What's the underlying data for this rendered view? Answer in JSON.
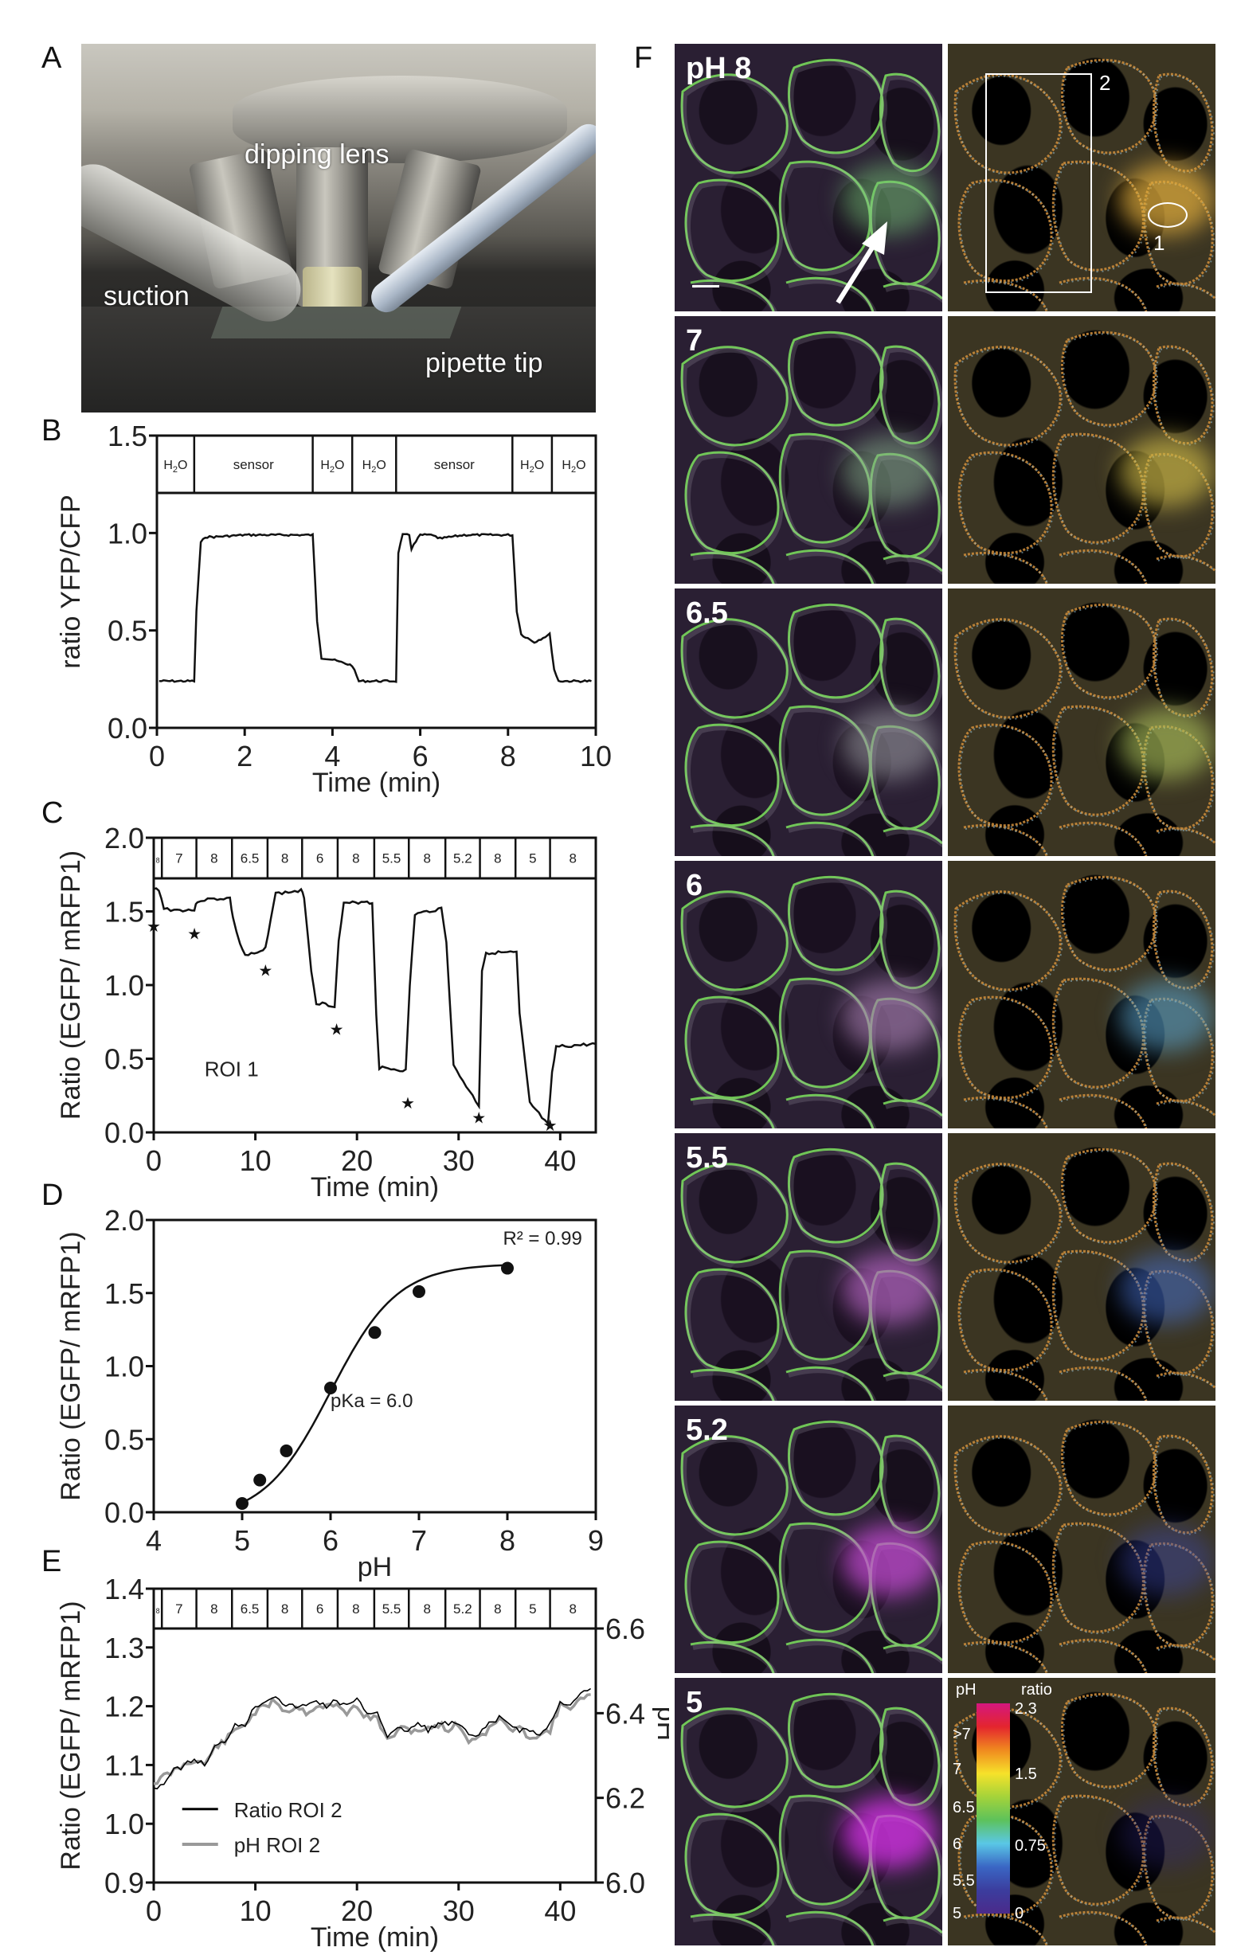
{
  "figure": {
    "panel_letters": {
      "A": "A",
      "B": "B",
      "C": "C",
      "D": "D",
      "E": "E",
      "F": "F"
    }
  },
  "panel_a": {
    "labels": {
      "dipping_lens": "dipping lens",
      "suction": "suction",
      "pipette_tip": "pipette tip"
    }
  },
  "panel_f": {
    "row_labels": [
      "pH 8",
      "7",
      "6.5",
      "6",
      "5.5",
      "5.2",
      "5"
    ],
    "roi_labels": {
      "roi1": "1",
      "roi2": "2"
    },
    "colorbar": {
      "ph_title": "pH",
      "ratio_title": "ratio",
      "ph_ticks": [
        ">7",
        "7",
        "6.5",
        "6",
        "5.5",
        "5"
      ],
      "ratio_ticks": [
        "2.3",
        "1.5",
        "0.75",
        "0"
      ],
      "colors": [
        "#d4177e",
        "#e4252e",
        "#f08a1f",
        "#f6e22a",
        "#a4d33a",
        "#5dc25b",
        "#5ac7e6",
        "#3a66c4",
        "#3b3d9e",
        "#4b2a8a"
      ]
    },
    "channel_colors": {
      "egfp_membrane": "#7be05a",
      "mrfp1": "#8a3aa0",
      "background": "#0b0710"
    }
  },
  "chart_data": [
    {
      "id": "B",
      "type": "line",
      "title": "",
      "xlabel": "Time (min)",
      "ylabel": "ratio YFP/CFP",
      "xlim": [
        0,
        10
      ],
      "ylim": [
        0,
        1.5
      ],
      "xticks": [
        "0",
        "2",
        "4",
        "6",
        "8",
        "10"
      ],
      "yticks": [
        "0.0",
        "0.5",
        "1.0",
        "1.5"
      ],
      "grid": false,
      "condition_bar": [
        {
          "label": "H2O",
          "start": 0,
          "end": 0.85
        },
        {
          "label": "sensor",
          "start": 0.85,
          "end": 3.55
        },
        {
          "label": "H2O",
          "start": 3.55,
          "end": 4.45
        },
        {
          "label": "H2O",
          "start": 4.45,
          "end": 5.45
        },
        {
          "label": "sensor",
          "start": 5.45,
          "end": 8.1
        },
        {
          "label": "H2O",
          "start": 8.1,
          "end": 9.0
        },
        {
          "label": "H2O",
          "start": 9.0,
          "end": 10
        }
      ],
      "x": [
        0.05,
        0.85,
        0.9,
        1.0,
        1.1,
        1.3,
        2.0,
        3.0,
        3.55,
        3.65,
        3.75,
        4.0,
        4.3,
        4.45,
        4.6,
        5.0,
        5.45,
        5.5,
        5.6,
        5.75,
        5.8,
        6.0,
        6.3,
        6.4,
        7.0,
        8.1,
        8.2,
        8.3,
        8.6,
        8.95,
        9.05,
        9.15,
        9.5,
        9.9
      ],
      "values": [
        0.24,
        0.24,
        0.6,
        0.95,
        0.98,
        0.98,
        0.99,
        0.99,
        0.99,
        0.55,
        0.36,
        0.35,
        0.33,
        0.32,
        0.24,
        0.24,
        0.24,
        0.9,
        0.99,
        0.99,
        0.92,
        0.99,
        0.99,
        0.97,
        0.99,
        0.99,
        0.6,
        0.48,
        0.44,
        0.48,
        0.3,
        0.24,
        0.24,
        0.24
      ],
      "series": [
        {
          "name": "ratio YFP/CFP"
        }
      ]
    },
    {
      "id": "C",
      "type": "line",
      "title": "",
      "xlabel": "Time (min)",
      "ylabel": "Ratio (EGFP/ mRFP1)",
      "xlim": [
        0,
        43.5
      ],
      "ylim": [
        0,
        2.0
      ],
      "xticks": [
        "0",
        "10",
        "20",
        "30",
        "40"
      ],
      "yticks": [
        "0.0",
        "0.5",
        "1.0",
        "1.5",
        "2.0"
      ],
      "annotation": "ROI 1",
      "condition_bar": [
        {
          "label": "8",
          "start": 0,
          "end": 0.8
        },
        {
          "label": "7",
          "start": 0.8,
          "end": 4.2
        },
        {
          "label": "8",
          "start": 4.2,
          "end": 7.7
        },
        {
          "label": "6.5",
          "start": 7.7,
          "end": 11.2
        },
        {
          "label": "8",
          "start": 11.2,
          "end": 14.6
        },
        {
          "label": "6",
          "start": 14.6,
          "end": 18.1
        },
        {
          "label": "8",
          "start": 18.1,
          "end": 21.7
        },
        {
          "label": "5.5",
          "start": 21.7,
          "end": 25.1
        },
        {
          "label": "8",
          "start": 25.1,
          "end": 28.7
        },
        {
          "label": "5.2",
          "start": 28.7,
          "end": 32.1
        },
        {
          "label": "8",
          "start": 32.1,
          "end": 35.6
        },
        {
          "label": "5",
          "start": 35.6,
          "end": 39.0
        },
        {
          "label": "8",
          "start": 39.0,
          "end": 43.5
        }
      ],
      "x": [
        0,
        0.5,
        1.0,
        2.0,
        4.0,
        4.3,
        5.0,
        7.5,
        7.8,
        8.5,
        9.0,
        10.5,
        11.0,
        11.5,
        12.0,
        14.5,
        14.8,
        15.5,
        16.0,
        17.8,
        18.2,
        18.7,
        21.0,
        21.5,
        21.9,
        22.2,
        24.8,
        25.2,
        25.7,
        28.3,
        28.8,
        29.5,
        32.0,
        32.3,
        32.7,
        35.7,
        36.0,
        37.0,
        38.8,
        39.2,
        39.6,
        43.5
      ],
      "values": [
        1.65,
        1.65,
        1.52,
        1.51,
        1.51,
        1.57,
        1.58,
        1.59,
        1.45,
        1.28,
        1.2,
        1.22,
        1.25,
        1.45,
        1.62,
        1.64,
        1.6,
        1.1,
        0.88,
        0.86,
        1.3,
        1.55,
        1.57,
        1.55,
        0.8,
        0.44,
        0.42,
        1.0,
        1.48,
        1.52,
        1.3,
        0.45,
        0.18,
        1.1,
        1.22,
        1.22,
        0.8,
        0.2,
        0.05,
        0.4,
        0.58,
        0.6
      ],
      "markers": {
        "symbol": "star",
        "points": [
          [
            0,
            1.4
          ],
          [
            4,
            1.35
          ],
          [
            11,
            1.1
          ],
          [
            18,
            0.7
          ],
          [
            25,
            0.2
          ],
          [
            32,
            0.1
          ],
          [
            39,
            0.05
          ]
        ]
      },
      "series": [
        {
          "name": "ROI 1"
        }
      ]
    },
    {
      "id": "D",
      "type": "scatter",
      "title": "",
      "xlabel": "pH",
      "ylabel": "Ratio (EGFP/ mRFP1)",
      "xlim": [
        4,
        9
      ],
      "ylim": [
        0,
        2.0
      ],
      "xticks": [
        "4",
        "5",
        "6",
        "7",
        "8",
        "9"
      ],
      "yticks": [
        "0.0",
        "0.5",
        "1.0",
        "1.5",
        "2.0"
      ],
      "x": [
        5.0,
        5.2,
        5.5,
        6.0,
        6.5,
        7.0,
        8.0
      ],
      "values": [
        0.06,
        0.22,
        0.42,
        0.85,
        1.23,
        1.51,
        1.67
      ],
      "fit": {
        "type": "sigmoidal",
        "pKa": 6.0,
        "bottom": -0.05,
        "top": 1.7,
        "x_range": [
          5.0,
          8.0
        ]
      },
      "annotations": {
        "r2": "R² = 0.99",
        "pka": "pKa = 6.0"
      },
      "series": [
        {
          "name": "calibration"
        }
      ]
    },
    {
      "id": "E",
      "type": "line",
      "title": "",
      "xlabel": "Time (min)",
      "ylabel": "Ratio (EGFP/ mRFP1)",
      "ylabel_right": "pH",
      "xlim": [
        0,
        43.5
      ],
      "ylim": [
        0.9,
        1.4
      ],
      "ylim_right": [
        6.0,
        6.6
      ],
      "xticks": [
        "0",
        "10",
        "20",
        "30",
        "40"
      ],
      "yticks": [
        "0.9",
        "1.0",
        "1.1",
        "1.2",
        "1.3",
        "1.4"
      ],
      "yticks_right": [
        "6.0",
        "6.2",
        "6.4",
        "6.6"
      ],
      "legend": [
        "Ratio ROI 2",
        "pH ROI 2"
      ],
      "legend_position": "lower left",
      "condition_bar": [
        {
          "label": "8",
          "start": 0,
          "end": 0.8
        },
        {
          "label": "7",
          "start": 0.8,
          "end": 4.2
        },
        {
          "label": "8",
          "start": 4.2,
          "end": 7.7
        },
        {
          "label": "6.5",
          "start": 7.7,
          "end": 11.2
        },
        {
          "label": "8",
          "start": 11.2,
          "end": 14.6
        },
        {
          "label": "6",
          "start": 14.6,
          "end": 18.1
        },
        {
          "label": "8",
          "start": 18.1,
          "end": 21.7
        },
        {
          "label": "5.5",
          "start": 21.7,
          "end": 25.1
        },
        {
          "label": "8",
          "start": 25.1,
          "end": 28.7
        },
        {
          "label": "5.2",
          "start": 28.7,
          "end": 32.1
        },
        {
          "label": "8",
          "start": 32.1,
          "end": 35.6
        },
        {
          "label": "5",
          "start": 35.6,
          "end": 39.0
        },
        {
          "label": "8",
          "start": 39.0,
          "end": 43.5
        }
      ],
      "x": [
        0,
        1,
        2,
        3,
        4,
        5,
        6,
        7,
        8,
        9,
        10,
        11,
        12,
        13,
        14,
        15,
        16,
        17,
        18,
        19,
        20,
        21,
        22,
        23,
        24,
        25,
        26,
        27,
        28,
        29,
        30,
        31,
        32,
        33,
        34,
        35,
        36,
        37,
        38,
        39,
        40,
        41,
        42,
        43
      ],
      "series": [
        {
          "name": "Ratio ROI 2",
          "color": "#000000",
          "values": [
            1.06,
            1.07,
            1.09,
            1.1,
            1.11,
            1.1,
            1.13,
            1.14,
            1.17,
            1.17,
            1.2,
            1.21,
            1.22,
            1.2,
            1.2,
            1.2,
            1.21,
            1.2,
            1.21,
            1.2,
            1.21,
            1.19,
            1.19,
            1.15,
            1.16,
            1.16,
            1.17,
            1.16,
            1.17,
            1.17,
            1.17,
            1.15,
            1.15,
            1.17,
            1.18,
            1.17,
            1.16,
            1.16,
            1.15,
            1.17,
            1.21,
            1.2,
            1.22,
            1.23
          ]
        },
        {
          "name": "pH ROI 2",
          "color": "#999999",
          "values": [
            1.07,
            1.08,
            1.09,
            1.1,
            1.11,
            1.1,
            1.13,
            1.14,
            1.16,
            1.17,
            1.19,
            1.2,
            1.21,
            1.19,
            1.2,
            1.19,
            1.2,
            1.2,
            1.2,
            1.19,
            1.2,
            1.18,
            1.18,
            1.14,
            1.16,
            1.16,
            1.16,
            1.16,
            1.17,
            1.16,
            1.17,
            1.14,
            1.15,
            1.16,
            1.18,
            1.16,
            1.16,
            1.15,
            1.15,
            1.16,
            1.2,
            1.2,
            1.21,
            1.22
          ]
        }
      ]
    }
  ]
}
